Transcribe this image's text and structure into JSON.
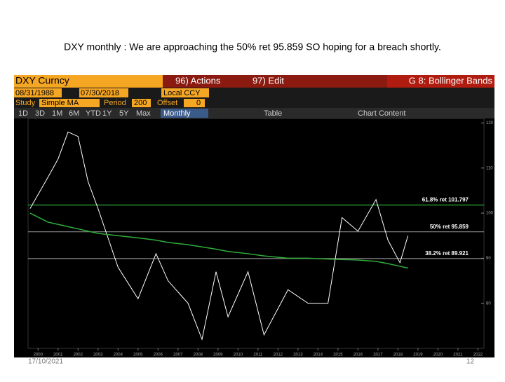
{
  "slide": {
    "title": "DXY monthly : We are approaching the 50% ret 95.859 SO hoping for a breach shortly.",
    "date": "17/10/2021",
    "page": "12"
  },
  "toolbar": {
    "ticker": "DXY Curncy",
    "actions": "96) Actions",
    "edit": "97) Edit",
    "function": "G 8: Bollinger Bands",
    "start_date": "08/31/1988",
    "end_date": "07/30/2018",
    "currency": "Local CCY",
    "study_label": "Study",
    "study": "Simple MA",
    "period_label": "Period",
    "period": "200",
    "offset_label": "Offset",
    "offset": "0",
    "ranges": [
      "1D",
      "3D",
      "1M",
      "6M",
      "YTD",
      "1Y",
      "5Y",
      "Max"
    ],
    "frequency": "Monthly",
    "table": "Table",
    "chart_content": "Chart Content"
  },
  "chart_data": {
    "type": "line",
    "x": [
      1999.6,
      2000.5,
      2001.0,
      2001.5,
      2002.0,
      2002.5,
      2003.0,
      2004.0,
      2005.0,
      2005.9,
      2006.5,
      2007.5,
      2008.2,
      2008.9,
      2009.5,
      2010.5,
      2011.3,
      2012.5,
      2013.5,
      2014.5,
      2015.2,
      2016.0,
      2016.9,
      2017.5,
      2018.1,
      2018.5
    ],
    "series": [
      {
        "color": "#ffffff",
        "values": [
          101,
          108,
          112,
          118,
          117,
          107,
          101,
          88,
          81,
          91,
          85,
          80,
          72,
          87,
          77,
          87,
          73,
          83,
          80,
          80,
          99,
          96,
          103,
          94,
          89,
          95
        ]
      },
      {
        "color": "#2fae3a",
        "values": [
          100,
          98,
          97.5,
          97,
          96.5,
          96,
          95.5,
          95,
          94.5,
          94,
          93.5,
          93,
          92.5,
          92,
          91.5,
          91,
          90.5,
          90,
          90,
          89.8,
          89.7,
          89.6,
          89.3,
          88.8,
          88.2,
          87.8
        ]
      }
    ],
    "xlim": [
      1999.5,
      2022.3
    ],
    "xticks": [
      2000,
      2001,
      2002,
      2003,
      2004,
      2005,
      2006,
      2007,
      2008,
      2009,
      2010,
      2011,
      2012,
      2013,
      2014,
      2015,
      2016,
      2017,
      2018,
      2019,
      2020,
      2021,
      2022
    ],
    "ylim": [
      70,
      121
    ],
    "yticks": [
      80,
      90,
      100,
      110,
      120
    ],
    "annotations": [
      {
        "text": "61.8% ret 101.797",
        "value": 101.797,
        "color": "#2fae3a"
      },
      {
        "text": "50% ret 95.859",
        "value": 95.859,
        "color": "#8a8a8a"
      },
      {
        "text": "38.2% ret 89.921",
        "value": 89.921,
        "color": "#8a8a8a"
      }
    ]
  }
}
